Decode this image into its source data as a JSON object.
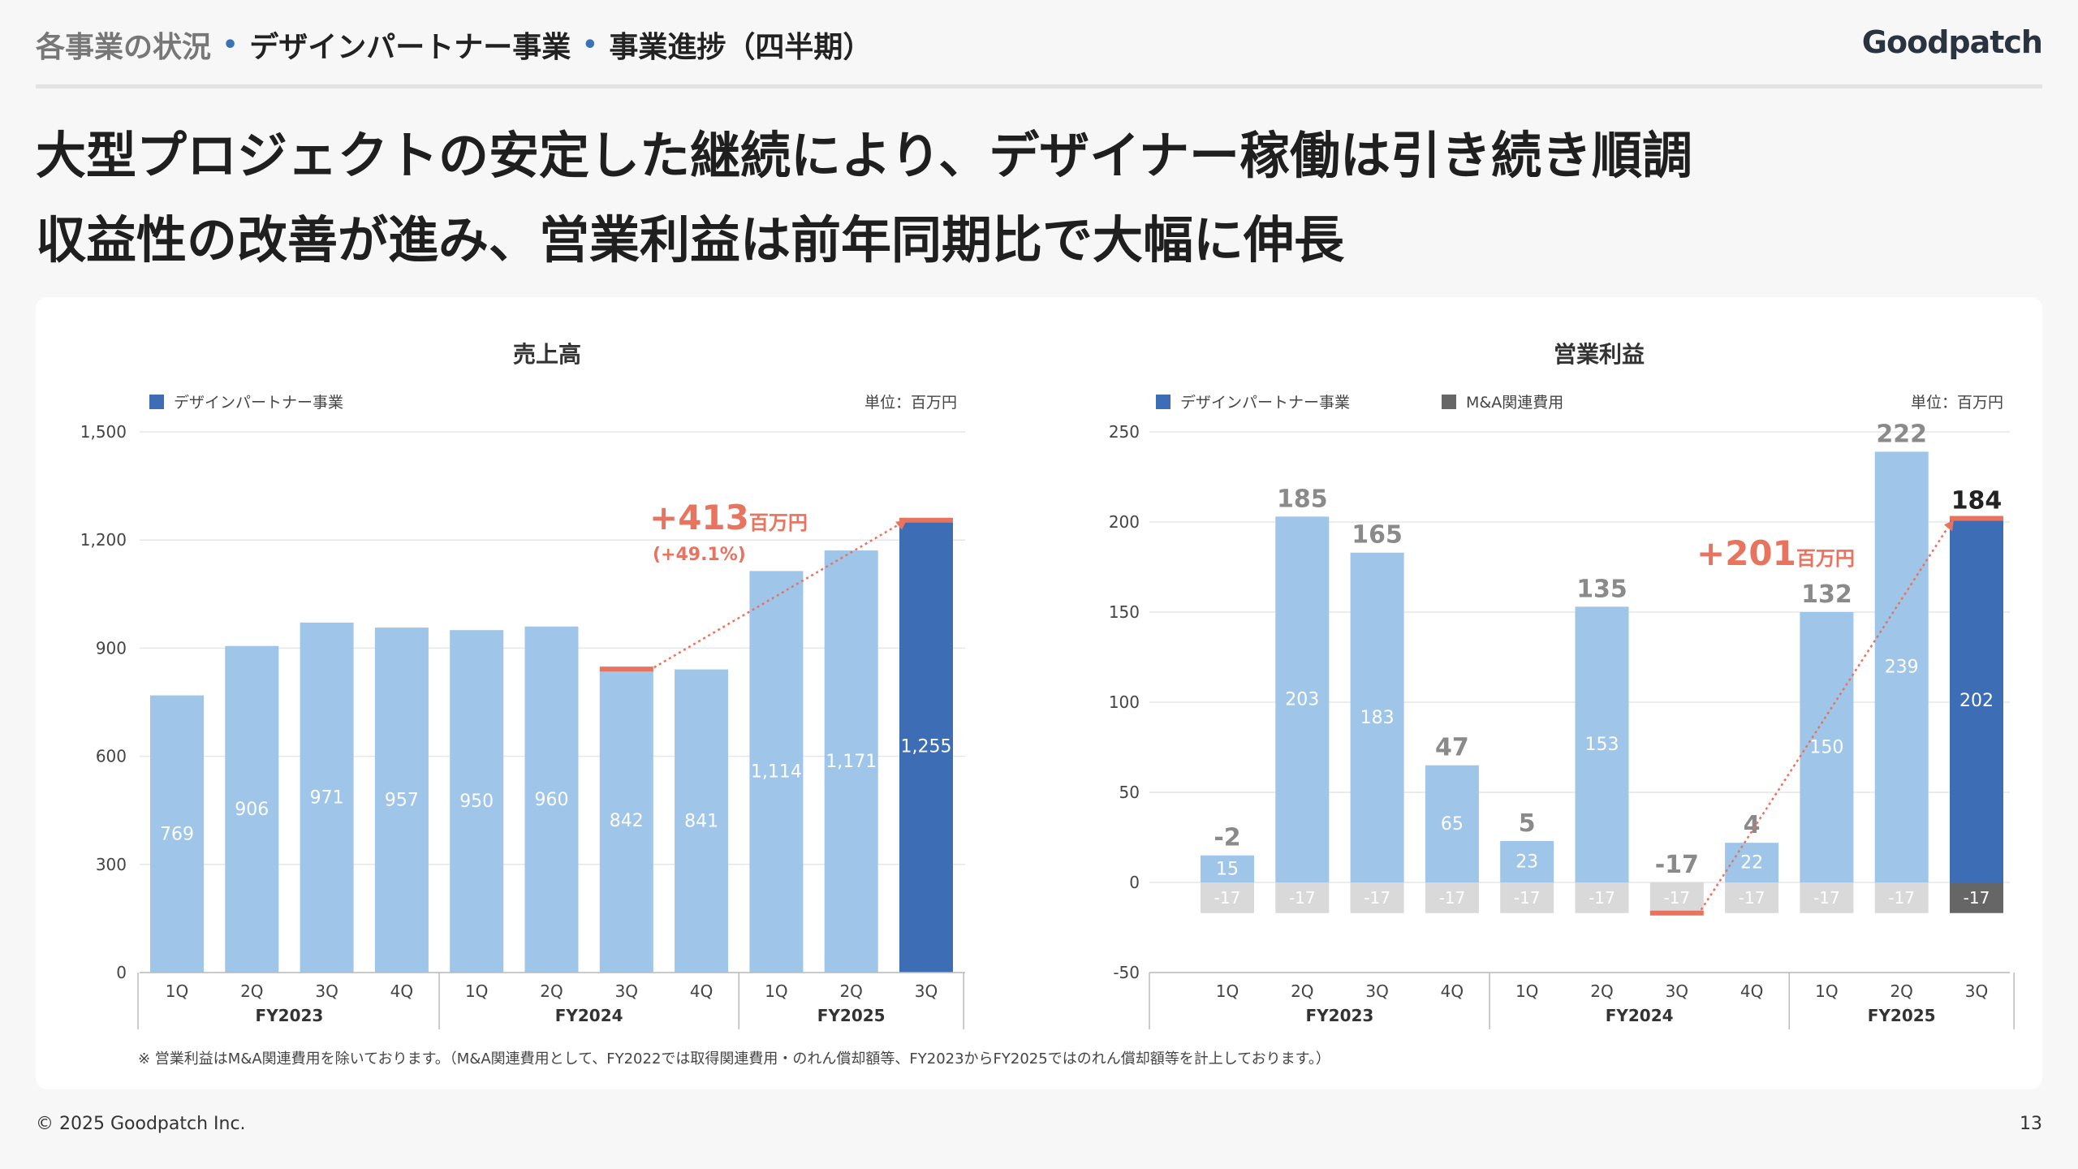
{
  "header": {
    "crumbs": [
      "各事業の状況",
      "デザインパートナー事業",
      "事業進捗（四半期）"
    ],
    "logo": "Goodpatch"
  },
  "headline": {
    "line1": "大型プロジェクトの安定した継続により、デザイナー稼働は引き続き順調",
    "line2": "収益性の改善が進み、営業利益は前年同期比で大幅に伸長"
  },
  "footnote": "※ 営業利益はM&A関連費用を除いております。（M&A関連費用として、FY2022では取得関連費用・のれん償却額等、FY2023からFY2025ではのれん償却額等を計上しております。）",
  "footer": {
    "copyright": "© 2025 Goodpatch Inc.",
    "page": "13"
  },
  "colors": {
    "light_bar": "#9fc5e8",
    "dark_bar": "#3d6db5",
    "ma_cost": "#d9d9d9",
    "ma_cost_dark": "#666666",
    "highlight": "#e8735f"
  },
  "chart_data": [
    {
      "type": "bar",
      "title": "売上高",
      "unit_label": "単位：百万円",
      "legend": [
        "デザインパートナー事業"
      ],
      "categories": [
        "1Q",
        "2Q",
        "3Q",
        "4Q",
        "1Q",
        "2Q",
        "3Q",
        "4Q",
        "1Q",
        "2Q",
        "3Q"
      ],
      "groups": [
        {
          "label": "FY2023",
          "span": 4
        },
        {
          "label": "FY2024",
          "span": 4
        },
        {
          "label": "FY2025",
          "span": 3
        }
      ],
      "series": [
        {
          "name": "デザインパートナー事業",
          "values": [
            769,
            906,
            971,
            957,
            950,
            960,
            842,
            841,
            1114,
            1171,
            1255
          ]
        }
      ],
      "value_labels": [
        "769",
        "906",
        "971",
        "957",
        "950",
        "960",
        "842",
        "841",
        "1,114",
        "1,171",
        "1,255"
      ],
      "yticks": [
        "0",
        "300",
        "600",
        "900",
        "1,200",
        "1,500"
      ],
      "ylim": [
        0,
        1500
      ],
      "highlight_index": 10,
      "annotation": {
        "main": "+413",
        "unit": "百万円",
        "sub": "(+49.1%)"
      }
    },
    {
      "type": "bar",
      "title": "営業利益",
      "unit_label": "単位：百万円",
      "legend": [
        "デザインパートナー事業",
        "M&A関連費用"
      ],
      "categories": [
        "1Q",
        "2Q",
        "3Q",
        "4Q",
        "1Q",
        "2Q",
        "3Q",
        "4Q",
        "1Q",
        "2Q",
        "3Q"
      ],
      "groups": [
        {
          "label": "FY2023",
          "span": 4
        },
        {
          "label": "FY2024",
          "span": 4
        },
        {
          "label": "FY2025",
          "span": 3
        }
      ],
      "series": [
        {
          "name": "デザインパートナー事業",
          "values": [
            15,
            203,
            183,
            65,
            23,
            153,
            0,
            22,
            150,
            239,
            202
          ]
        },
        {
          "name": "M&A関連費用",
          "values": [
            -17,
            -17,
            -17,
            -17,
            -17,
            -17,
            -17,
            -17,
            -17,
            -17,
            -17
          ]
        }
      ],
      "totals": [
        "-2",
        "185",
        "165",
        "47",
        "5",
        "135",
        "-17",
        "4",
        "132",
        "222",
        "184"
      ],
      "segment_labels": [
        "15",
        "203",
        "183",
        "65",
        "23",
        "153",
        "",
        "22",
        "150",
        "239",
        "202"
      ],
      "cost_labels": [
        "-17",
        "-17",
        "-17",
        "-17",
        "-17",
        "-17",
        "-17",
        "-17",
        "-17",
        "-17",
        "-17"
      ],
      "yticks": [
        "-50",
        "0",
        "50",
        "100",
        "150",
        "200",
        "250"
      ],
      "ylim": [
        -50,
        250
      ],
      "highlight_index": 10,
      "annotation": {
        "main": "+201",
        "unit": "百万円"
      }
    }
  ]
}
